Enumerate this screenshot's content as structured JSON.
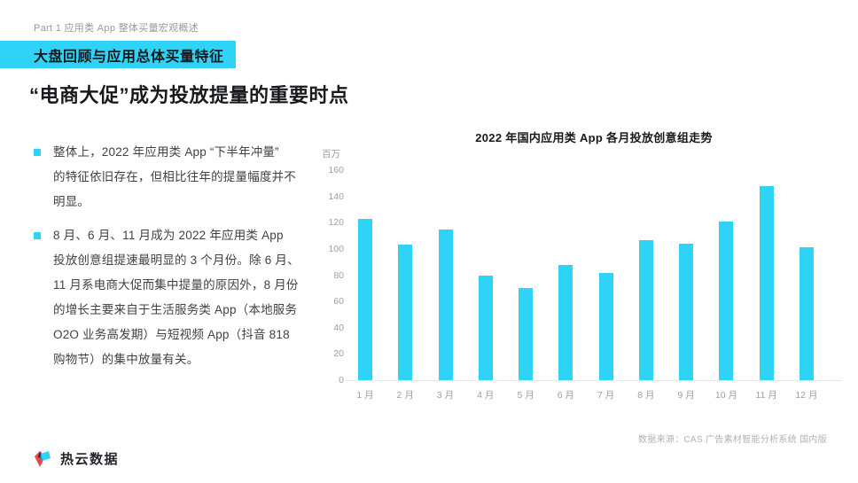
{
  "colors": {
    "accent": "#2ED3F5",
    "banner_bg": "#2ED3F5",
    "bar": "#2ED3F5"
  },
  "header": {
    "part_label": "Part 1 应用类 App 整体买量宏观概述",
    "section_banner": "大盘回顾与应用总体买量特征",
    "heading": "“电商大促”成为投放提量的重要时点"
  },
  "bullets": [
    {
      "text": "整体上，2022 年应用类 App “下半年冲量”\n的特征依旧存在，但相比往年的提量幅度并不\n明显。"
    },
    {
      "text": "8 月、6 月、11 月成为 2022 年应用类 App\n投放创意组提速最明显的 3 个月份。除 6 月、\n11 月系电商大促而集中提量的原因外，8 月份\n的增长主要来自于生活服务类 App（本地服务\nO2O 业务高发期）与短视频 App（抖音 818\n购物节）的集中放量有关。"
    }
  ],
  "chart_data": {
    "type": "bar",
    "title": "2022 年国内应用类 App 各月投放创意组走势",
    "unit_label": "百万",
    "categories": [
      "1 月",
      "2 月",
      "3 月",
      "4 月",
      "5 月",
      "6 月",
      "7 月",
      "8 月",
      "9 月",
      "10 月",
      "11 月",
      "12 月"
    ],
    "values": [
      123,
      103,
      115,
      80,
      70,
      88,
      82,
      107,
      104,
      121,
      148,
      101
    ],
    "ylabel": "百万",
    "xlabel": "",
    "ylim": [
      0,
      160
    ],
    "yticks": [
      0,
      20,
      40,
      60,
      80,
      100,
      120,
      140,
      160
    ],
    "grid": false,
    "legend": false,
    "bar_color": "#2ED3F5"
  },
  "footer": {
    "source": "数据来源：CAS 广告素材智能分析系统 国内版",
    "logo_text": "热云数据"
  }
}
